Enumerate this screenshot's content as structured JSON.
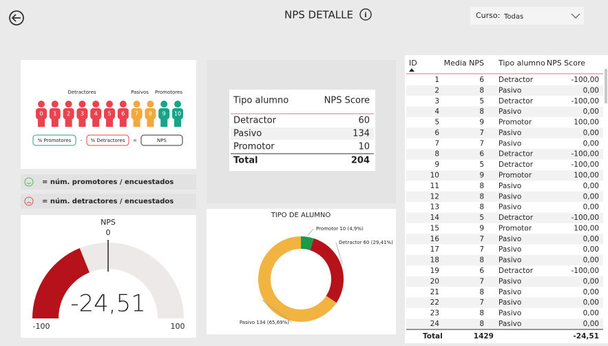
{
  "header": {
    "title": "NPS DETALLE",
    "filter_label": "Curso:",
    "filter_value": "Todas"
  },
  "scale_panel": {
    "groups": [
      "Detractores",
      "Pasivos",
      "Promotores"
    ],
    "scores": [
      0,
      1,
      2,
      3,
      4,
      5,
      6,
      7,
      8,
      9,
      10
    ],
    "formula": [
      "% Promotores",
      "-",
      "% Detractores",
      "=",
      "NPS"
    ]
  },
  "legend": [
    "= núm. promotores / encuestados",
    "= núm. detractores / encuestados"
  ],
  "summary_table": {
    "columns": [
      "Tipo alumno",
      "NPS Score"
    ],
    "rows": [
      [
        "Detractor",
        "60"
      ],
      [
        "Pasivo",
        "134"
      ],
      [
        "Promotor",
        "10"
      ]
    ],
    "total": [
      "Total",
      "204"
    ]
  },
  "gauge": {
    "type": "gauge",
    "title": "NPS",
    "value": -24.51,
    "value_label": "-24,51",
    "min": -100,
    "max": 100,
    "target": 0,
    "color": "#b5121b"
  },
  "donut_chart": {
    "type": "pie",
    "title": "TIPO DE ALUMNO",
    "categories": [
      "Promotor",
      "Detractor",
      "Pasivo"
    ],
    "values": [
      10,
      60,
      134
    ],
    "value_labels": [
      "Promotor 10 (4,9%)",
      "Detractor 60 (29,41%)",
      "Pasivo 134 (65,69%)"
    ],
    "colors": [
      "#1b9a4a",
      "#b5121b",
      "#f2b440"
    ]
  },
  "detail_table": {
    "columns": [
      "ID",
      "Media NPS",
      "Tipo alumno",
      "NPS Score"
    ],
    "rows": [
      [
        1,
        6,
        "Detractor",
        "-100,00"
      ],
      [
        2,
        8,
        "Pasivo",
        "0,00"
      ],
      [
        3,
        5,
        "Detractor",
        "-100,00"
      ],
      [
        4,
        8,
        "Pasivo",
        "0,00"
      ],
      [
        5,
        9,
        "Promotor",
        "100,00"
      ],
      [
        6,
        7,
        "Pasivo",
        "0,00"
      ],
      [
        7,
        7,
        "Pasivo",
        "0,00"
      ],
      [
        8,
        6,
        "Detractor",
        "-100,00"
      ],
      [
        9,
        5,
        "Detractor",
        "-100,00"
      ],
      [
        10,
        9,
        "Promotor",
        "100,00"
      ],
      [
        11,
        8,
        "Pasivo",
        "0,00"
      ],
      [
        12,
        8,
        "Pasivo",
        "0,00"
      ],
      [
        13,
        8,
        "Pasivo",
        "0,00"
      ],
      [
        14,
        5,
        "Detractor",
        "-100,00"
      ],
      [
        15,
        9,
        "Promotor",
        "100,00"
      ],
      [
        16,
        7,
        "Pasivo",
        "0,00"
      ],
      [
        17,
        7,
        "Pasivo",
        "0,00"
      ],
      [
        18,
        8,
        "Pasivo",
        "0,00"
      ],
      [
        19,
        6,
        "Detractor",
        "-100,00"
      ],
      [
        20,
        7,
        "Pasivo",
        "0,00"
      ],
      [
        21,
        8,
        "Pasivo",
        "0,00"
      ],
      [
        22,
        7,
        "Pasivo",
        "0,00"
      ],
      [
        23,
        8,
        "Pasivo",
        "0,00"
      ],
      [
        24,
        8,
        "Pasivo",
        "0,00"
      ]
    ],
    "total": [
      "Total",
      "1429",
      "-24,51"
    ]
  }
}
